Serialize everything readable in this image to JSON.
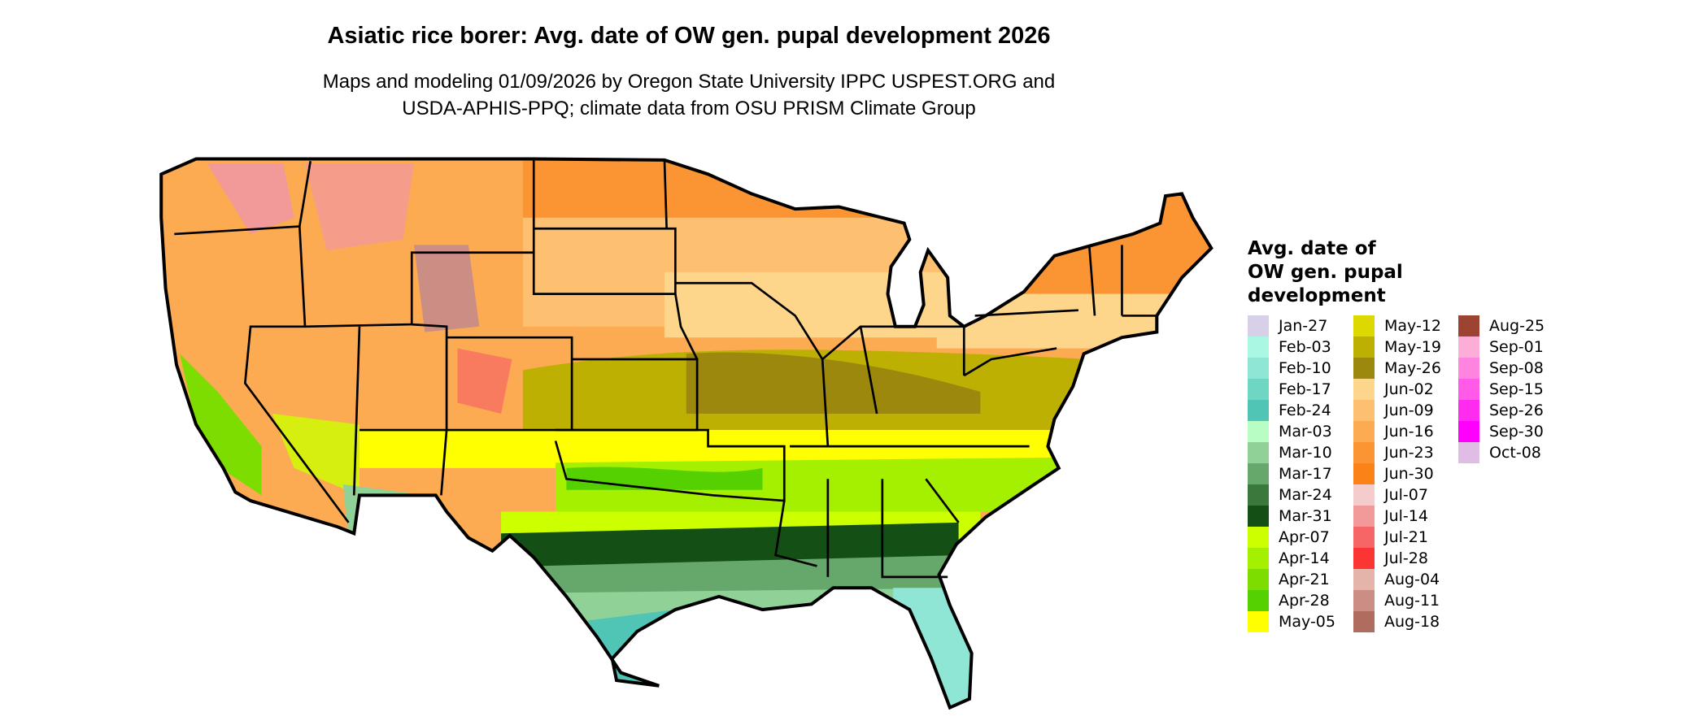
{
  "title": "Asiatic rice borer: Avg. date of OW gen. pupal development 2026",
  "subtitle_line1": "Maps and modeling 01/09/2026 by Oregon State University IPPC USPEST.ORG and",
  "subtitle_line2": "USDA-APHIS-PPQ; climate data from OSU PRISM Climate Group",
  "legend": {
    "title_line1": "Avg. date of",
    "title_line2": "OW gen. pupal",
    "title_line3": "development",
    "columns": [
      [
        {
          "label": "Jan-27",
          "color": "#d8d0e8"
        },
        {
          "label": "Feb-03",
          "color": "#aaf7e3"
        },
        {
          "label": "Feb-10",
          "color": "#90e6d4"
        },
        {
          "label": "Feb-17",
          "color": "#70d6c4"
        },
        {
          "label": "Feb-24",
          "color": "#50c4b5"
        },
        {
          "label": "Mar-03",
          "color": "#b8fdc3"
        },
        {
          "label": "Mar-10",
          "color": "#8fd197"
        },
        {
          "label": "Mar-17",
          "color": "#66a86b"
        },
        {
          "label": "Mar-24",
          "color": "#3a783c"
        },
        {
          "label": "Mar-31",
          "color": "#144f16"
        },
        {
          "label": "Apr-07",
          "color": "#ccff00"
        },
        {
          "label": "Apr-14",
          "color": "#a5ef00"
        },
        {
          "label": "Apr-21",
          "color": "#7ddd00"
        },
        {
          "label": "Apr-28",
          "color": "#55d000"
        },
        {
          "label": "May-05",
          "color": "#ffff00"
        }
      ],
      [
        {
          "label": "May-12",
          "color": "#dcd800"
        },
        {
          "label": "May-19",
          "color": "#bdb002"
        },
        {
          "label": "May-26",
          "color": "#9c880c"
        },
        {
          "label": "Jun-02",
          "color": "#fdd68c"
        },
        {
          "label": "Jun-09",
          "color": "#fdc070"
        },
        {
          "label": "Jun-16",
          "color": "#fcab52"
        },
        {
          "label": "Jun-23",
          "color": "#fb9534"
        },
        {
          "label": "Jun-30",
          "color": "#fb8217"
        },
        {
          "label": "Jul-07",
          "color": "#f4cccc"
        },
        {
          "label": "Jul-14",
          "color": "#f29999"
        },
        {
          "label": "Jul-21",
          "color": "#f66666"
        },
        {
          "label": "Jul-28",
          "color": "#fb3434"
        },
        {
          "label": "Aug-04",
          "color": "#e4b4aa"
        },
        {
          "label": "Aug-11",
          "color": "#cb8e84"
        },
        {
          "label": "Aug-18",
          "color": "#b06c5f"
        }
      ],
      [
        {
          "label": "Aug-25",
          "color": "#9c4332"
        },
        {
          "label": "Sep-01",
          "color": "#fcaed8"
        },
        {
          "label": "Sep-08",
          "color": "#fe84e0"
        },
        {
          "label": "Sep-15",
          "color": "#ff5ae8"
        },
        {
          "label": "Sep-26",
          "color": "#ff2cf0"
        },
        {
          "label": "Sep-30",
          "color": "#ff00ff"
        },
        {
          "label": "Oct-08",
          "color": "#e0bde5"
        }
      ]
    ]
  }
}
